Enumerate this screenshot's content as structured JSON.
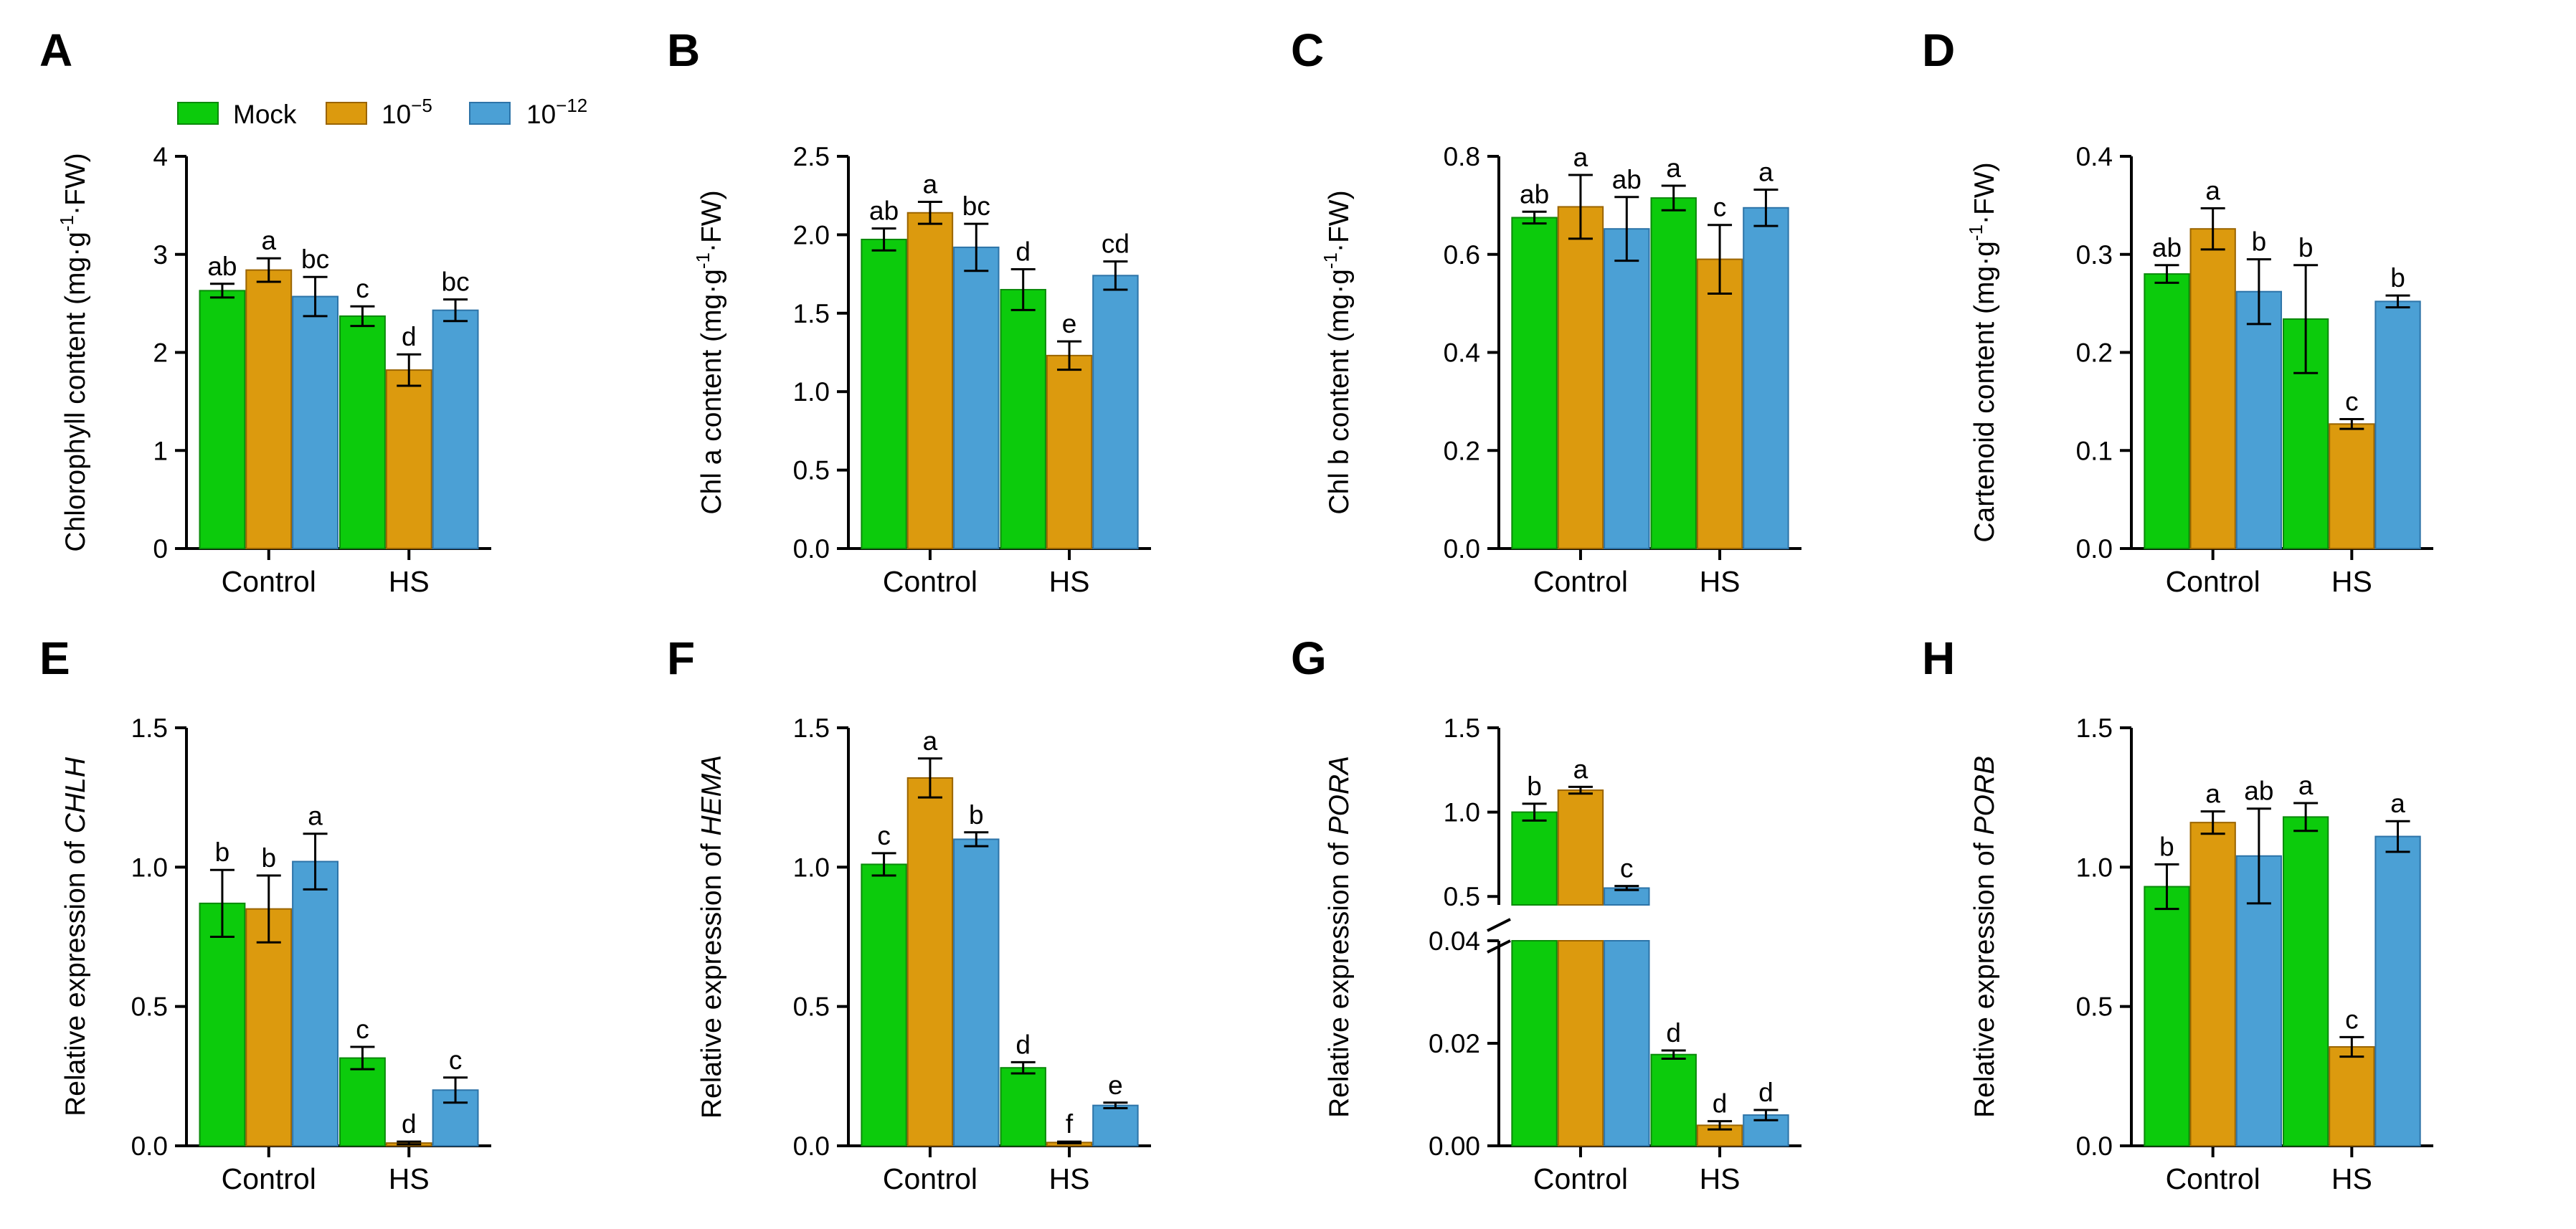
{
  "colors": {
    "mock": "#0ccb0c",
    "e5": "#dc9a0e",
    "e12": "#4ba0d5",
    "edge_mock": "#0a8a0a",
    "edge_e5": "#9a6400",
    "edge_e12": "#2d74a8"
  },
  "legend": {
    "mock": "Mock",
    "e5_base": "10",
    "e5_exp": "−5",
    "e12_base": "10",
    "e12_exp": "−12"
  },
  "chart_data": [
    {
      "panel": "A",
      "type": "bar",
      "categories": [
        "Control",
        "HS"
      ],
      "ylim": [
        0,
        4
      ],
      "ticks": [
        "0",
        "1",
        "2",
        "3",
        "4"
      ],
      "ylabel": "Chlorophyll content (mg·g-1·FW)",
      "ylabel_parts": {
        "pre": "Chlorophyll content (mg·g",
        "sup": "-1",
        "post": "·FW)"
      },
      "series": [
        {
          "name": "Mock",
          "values": [
            2.63,
            2.37
          ],
          "errors": [
            0.07,
            0.1
          ],
          "letters": [
            "ab",
            "c"
          ]
        },
        {
          "name": "10^-5",
          "values": [
            2.84,
            1.82
          ],
          "errors": [
            0.12,
            0.16
          ],
          "letters": [
            "a",
            "d"
          ]
        },
        {
          "name": "10^-12",
          "values": [
            2.57,
            2.43
          ],
          "errors": [
            0.2,
            0.11
          ],
          "letters": [
            "bc",
            "bc"
          ]
        }
      ]
    },
    {
      "panel": "B",
      "type": "bar",
      "categories": [
        "Control",
        "HS"
      ],
      "ylim": [
        0,
        2.5
      ],
      "ticks": [
        "0.0",
        "0.5",
        "1.0",
        "1.5",
        "2.0",
        "2.5"
      ],
      "ylabel": "Chl a content (mg·g-1·FW)",
      "ylabel_parts": {
        "pre": "Chl a content (mg·g",
        "sup": "-1",
        "post": "·FW)"
      },
      "series": [
        {
          "name": "Mock",
          "values": [
            1.97,
            1.65
          ],
          "errors": [
            0.07,
            0.13
          ],
          "letters": [
            "ab",
            "d"
          ]
        },
        {
          "name": "10^-5",
          "values": [
            2.14,
            1.23
          ],
          "errors": [
            0.07,
            0.09
          ],
          "letters": [
            "a",
            "e"
          ]
        },
        {
          "name": "10^-12",
          "values": [
            1.92,
            1.74
          ],
          "errors": [
            0.15,
            0.09
          ],
          "letters": [
            "bc",
            "cd"
          ]
        }
      ]
    },
    {
      "panel": "C",
      "type": "bar",
      "categories": [
        "Control",
        "HS"
      ],
      "ylim": [
        0,
        0.8
      ],
      "ticks": [
        "0.0",
        "0.2",
        "0.4",
        "0.6",
        "0.8"
      ],
      "ylabel": "Chl b content (mg·g-1·FW)",
      "ylabel_parts": {
        "pre": "Chl b content (mg·g",
        "sup": "-1",
        "post": "·FW)"
      },
      "series": [
        {
          "name": "Mock",
          "values": [
            0.675,
            0.715
          ],
          "errors": [
            0.012,
            0.025
          ],
          "letters": [
            "ab",
            "a"
          ]
        },
        {
          "name": "10^-5",
          "values": [
            0.697,
            0.59
          ],
          "errors": [
            0.065,
            0.07
          ],
          "letters": [
            "a",
            "c"
          ]
        },
        {
          "name": "10^-12",
          "values": [
            0.652,
            0.695
          ],
          "errors": [
            0.065,
            0.037
          ],
          "letters": [
            "ab",
            "a"
          ]
        }
      ]
    },
    {
      "panel": "D",
      "type": "bar",
      "categories": [
        "Control",
        "HS"
      ],
      "ylim": [
        0,
        0.4
      ],
      "ticks": [
        "0.0",
        "0.1",
        "0.2",
        "0.3",
        "0.4"
      ],
      "ylabel": "Cartenoid content (mg·g-1·FW)",
      "ylabel_parts": {
        "pre": "Cartenoid content (mg·g",
        "sup": "-1",
        "post": "·FW)"
      },
      "series": [
        {
          "name": "Mock",
          "values": [
            0.28,
            0.234
          ],
          "errors": [
            0.009,
            0.055
          ],
          "letters": [
            "ab",
            "b"
          ]
        },
        {
          "name": "10^-5",
          "values": [
            0.326,
            0.127
          ],
          "errors": [
            0.021,
            0.005
          ],
          "letters": [
            "a",
            "c"
          ]
        },
        {
          "name": "10^-12",
          "values": [
            0.262,
            0.252
          ],
          "errors": [
            0.033,
            0.006
          ],
          "letters": [
            "b",
            "b"
          ]
        }
      ]
    },
    {
      "panel": "E",
      "type": "bar",
      "categories": [
        "Control",
        "HS"
      ],
      "ylim": [
        0,
        1.5
      ],
      "ticks": [
        "0.0",
        "0.5",
        "1.0",
        "1.5"
      ],
      "ylabel": "Relative expression of CHLH",
      "ylabel_parts": {
        "pre": "Relative expression of ",
        "gene": "CHLH"
      },
      "series": [
        {
          "name": "Mock",
          "values": [
            0.87,
            0.315
          ],
          "errors": [
            0.12,
            0.04
          ],
          "letters": [
            "b",
            "c"
          ]
        },
        {
          "name": "10^-5",
          "values": [
            0.85,
            0.01
          ],
          "errors": [
            0.12,
            0.005
          ],
          "letters": [
            "b",
            "d"
          ]
        },
        {
          "name": "10^-12",
          "values": [
            1.02,
            0.2
          ],
          "errors": [
            0.1,
            0.045
          ],
          "letters": [
            "a",
            "c"
          ]
        }
      ]
    },
    {
      "panel": "F",
      "type": "bar",
      "categories": [
        "Control",
        "HS"
      ],
      "ylim": [
        0,
        1.5
      ],
      "ticks": [
        "0.0",
        "0.5",
        "1.0",
        "1.5"
      ],
      "ylabel": "Relative expression of HEMA",
      "ylabel_parts": {
        "pre": "Relative expression of ",
        "gene": "HEMA"
      },
      "series": [
        {
          "name": "Mock",
          "values": [
            1.01,
            0.28
          ],
          "errors": [
            0.04,
            0.02
          ],
          "letters": [
            "c",
            "d"
          ]
        },
        {
          "name": "10^-5",
          "values": [
            1.32,
            0.012
          ],
          "errors": [
            0.07,
            0.003
          ],
          "letters": [
            "a",
            "f"
          ]
        },
        {
          "name": "10^-12",
          "values": [
            1.1,
            0.145
          ],
          "errors": [
            0.025,
            0.01
          ],
          "letters": [
            "b",
            "e"
          ]
        }
      ]
    },
    {
      "panel": "G",
      "type": "bar",
      "categories": [
        "Control",
        "HS"
      ],
      "broken_axis": true,
      "ylim_lower": [
        0,
        0.04
      ],
      "ylim_upper": [
        0.45,
        1.5
      ],
      "ticks_lower": [
        "0.00",
        "0.02",
        "0.04"
      ],
      "ticks_upper": [
        "0.5",
        "1.0",
        "1.5"
      ],
      "ylabel": "Relative expression of PORA",
      "ylabel_parts": {
        "pre": "Relative expression of ",
        "gene": "PORA"
      },
      "series": [
        {
          "name": "Mock",
          "values": [
            1.0,
            0.0178
          ],
          "errors": [
            0.05,
            0.0008
          ],
          "letters": [
            "b",
            "d"
          ]
        },
        {
          "name": "10^-5",
          "values": [
            1.13,
            0.004
          ],
          "errors": [
            0.02,
            0.0008
          ],
          "letters": [
            "a",
            "d"
          ]
        },
        {
          "name": "10^-12",
          "values": [
            0.55,
            0.006
          ],
          "errors": [
            0.012,
            0.001
          ],
          "letters": [
            "c",
            "d"
          ]
        }
      ]
    },
    {
      "panel": "H",
      "type": "bar",
      "categories": [
        "Control",
        "HS"
      ],
      "ylim": [
        0,
        1.5
      ],
      "ticks": [
        "0.0",
        "0.5",
        "1.0",
        "1.5"
      ],
      "ylabel": "Relative expression of PORB",
      "ylabel_parts": {
        "pre": "Relative expression of ",
        "gene": "PORB"
      },
      "series": [
        {
          "name": "Mock",
          "values": [
            0.93,
            1.18
          ],
          "errors": [
            0.08,
            0.05
          ],
          "letters": [
            "b",
            "a"
          ]
        },
        {
          "name": "10^-5",
          "values": [
            1.16,
            0.355
          ],
          "errors": [
            0.04,
            0.035
          ],
          "letters": [
            "a",
            "c"
          ]
        },
        {
          "name": "10^-12",
          "values": [
            1.04,
            1.11
          ],
          "errors": [
            0.17,
            0.055
          ],
          "letters": [
            "ab",
            "a"
          ]
        }
      ]
    }
  ]
}
